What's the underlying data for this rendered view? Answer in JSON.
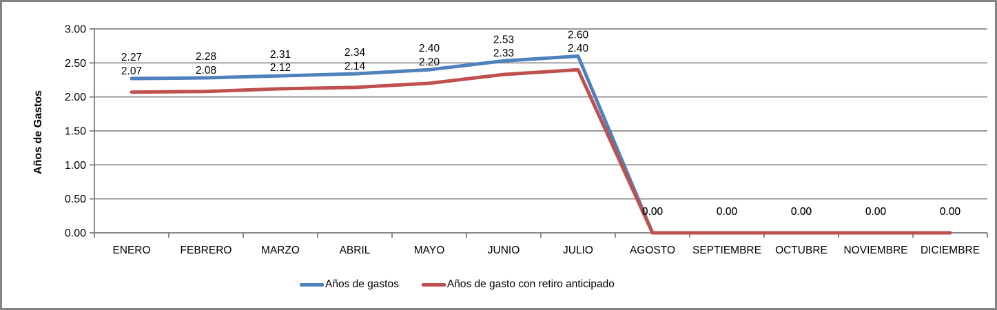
{
  "window": {
    "background_color": "#FFFFFF",
    "frame_border_color": "#848484"
  },
  "chart_data": {
    "type": "line",
    "title": "",
    "xlabel": "",
    "ylabel": "Años de Gastos",
    "categories": [
      "ENERO",
      "FEBRERO",
      "MARZO",
      "ABRIL",
      "MAYO",
      "JUNIO",
      "JULIO",
      "AGOSTO",
      "SEPTIEMBRE",
      "OCTUBRE",
      "NOVIEMBRE",
      "DICIEMBRE"
    ],
    "series": [
      {
        "name": "Años de gastos",
        "color": "#4F81BD",
        "values": [
          2.27,
          2.28,
          2.31,
          2.34,
          2.4,
          2.53,
          2.6,
          0.0,
          0.0,
          0.0,
          0.0,
          0.0
        ]
      },
      {
        "name": "Años de gasto con retiro anticipado",
        "color": "#C0504D",
        "values": [
          2.07,
          2.08,
          2.12,
          2.14,
          2.2,
          2.33,
          2.4,
          0.0,
          0.0,
          0.0,
          0.0,
          0.0
        ]
      }
    ],
    "ylim": [
      0,
      3
    ],
    "ytick_step": 0.5,
    "ytick_labels": [
      "3.00",
      "2.50",
      "2.00",
      "1.50",
      "1.00",
      "0.50",
      "0.00"
    ],
    "grid": true,
    "data_labels": true,
    "data_label_format": "0.00",
    "legend_position": "bottom",
    "gridline_color": "#898989",
    "axis_color": "#898989",
    "text_color": "#000000"
  }
}
